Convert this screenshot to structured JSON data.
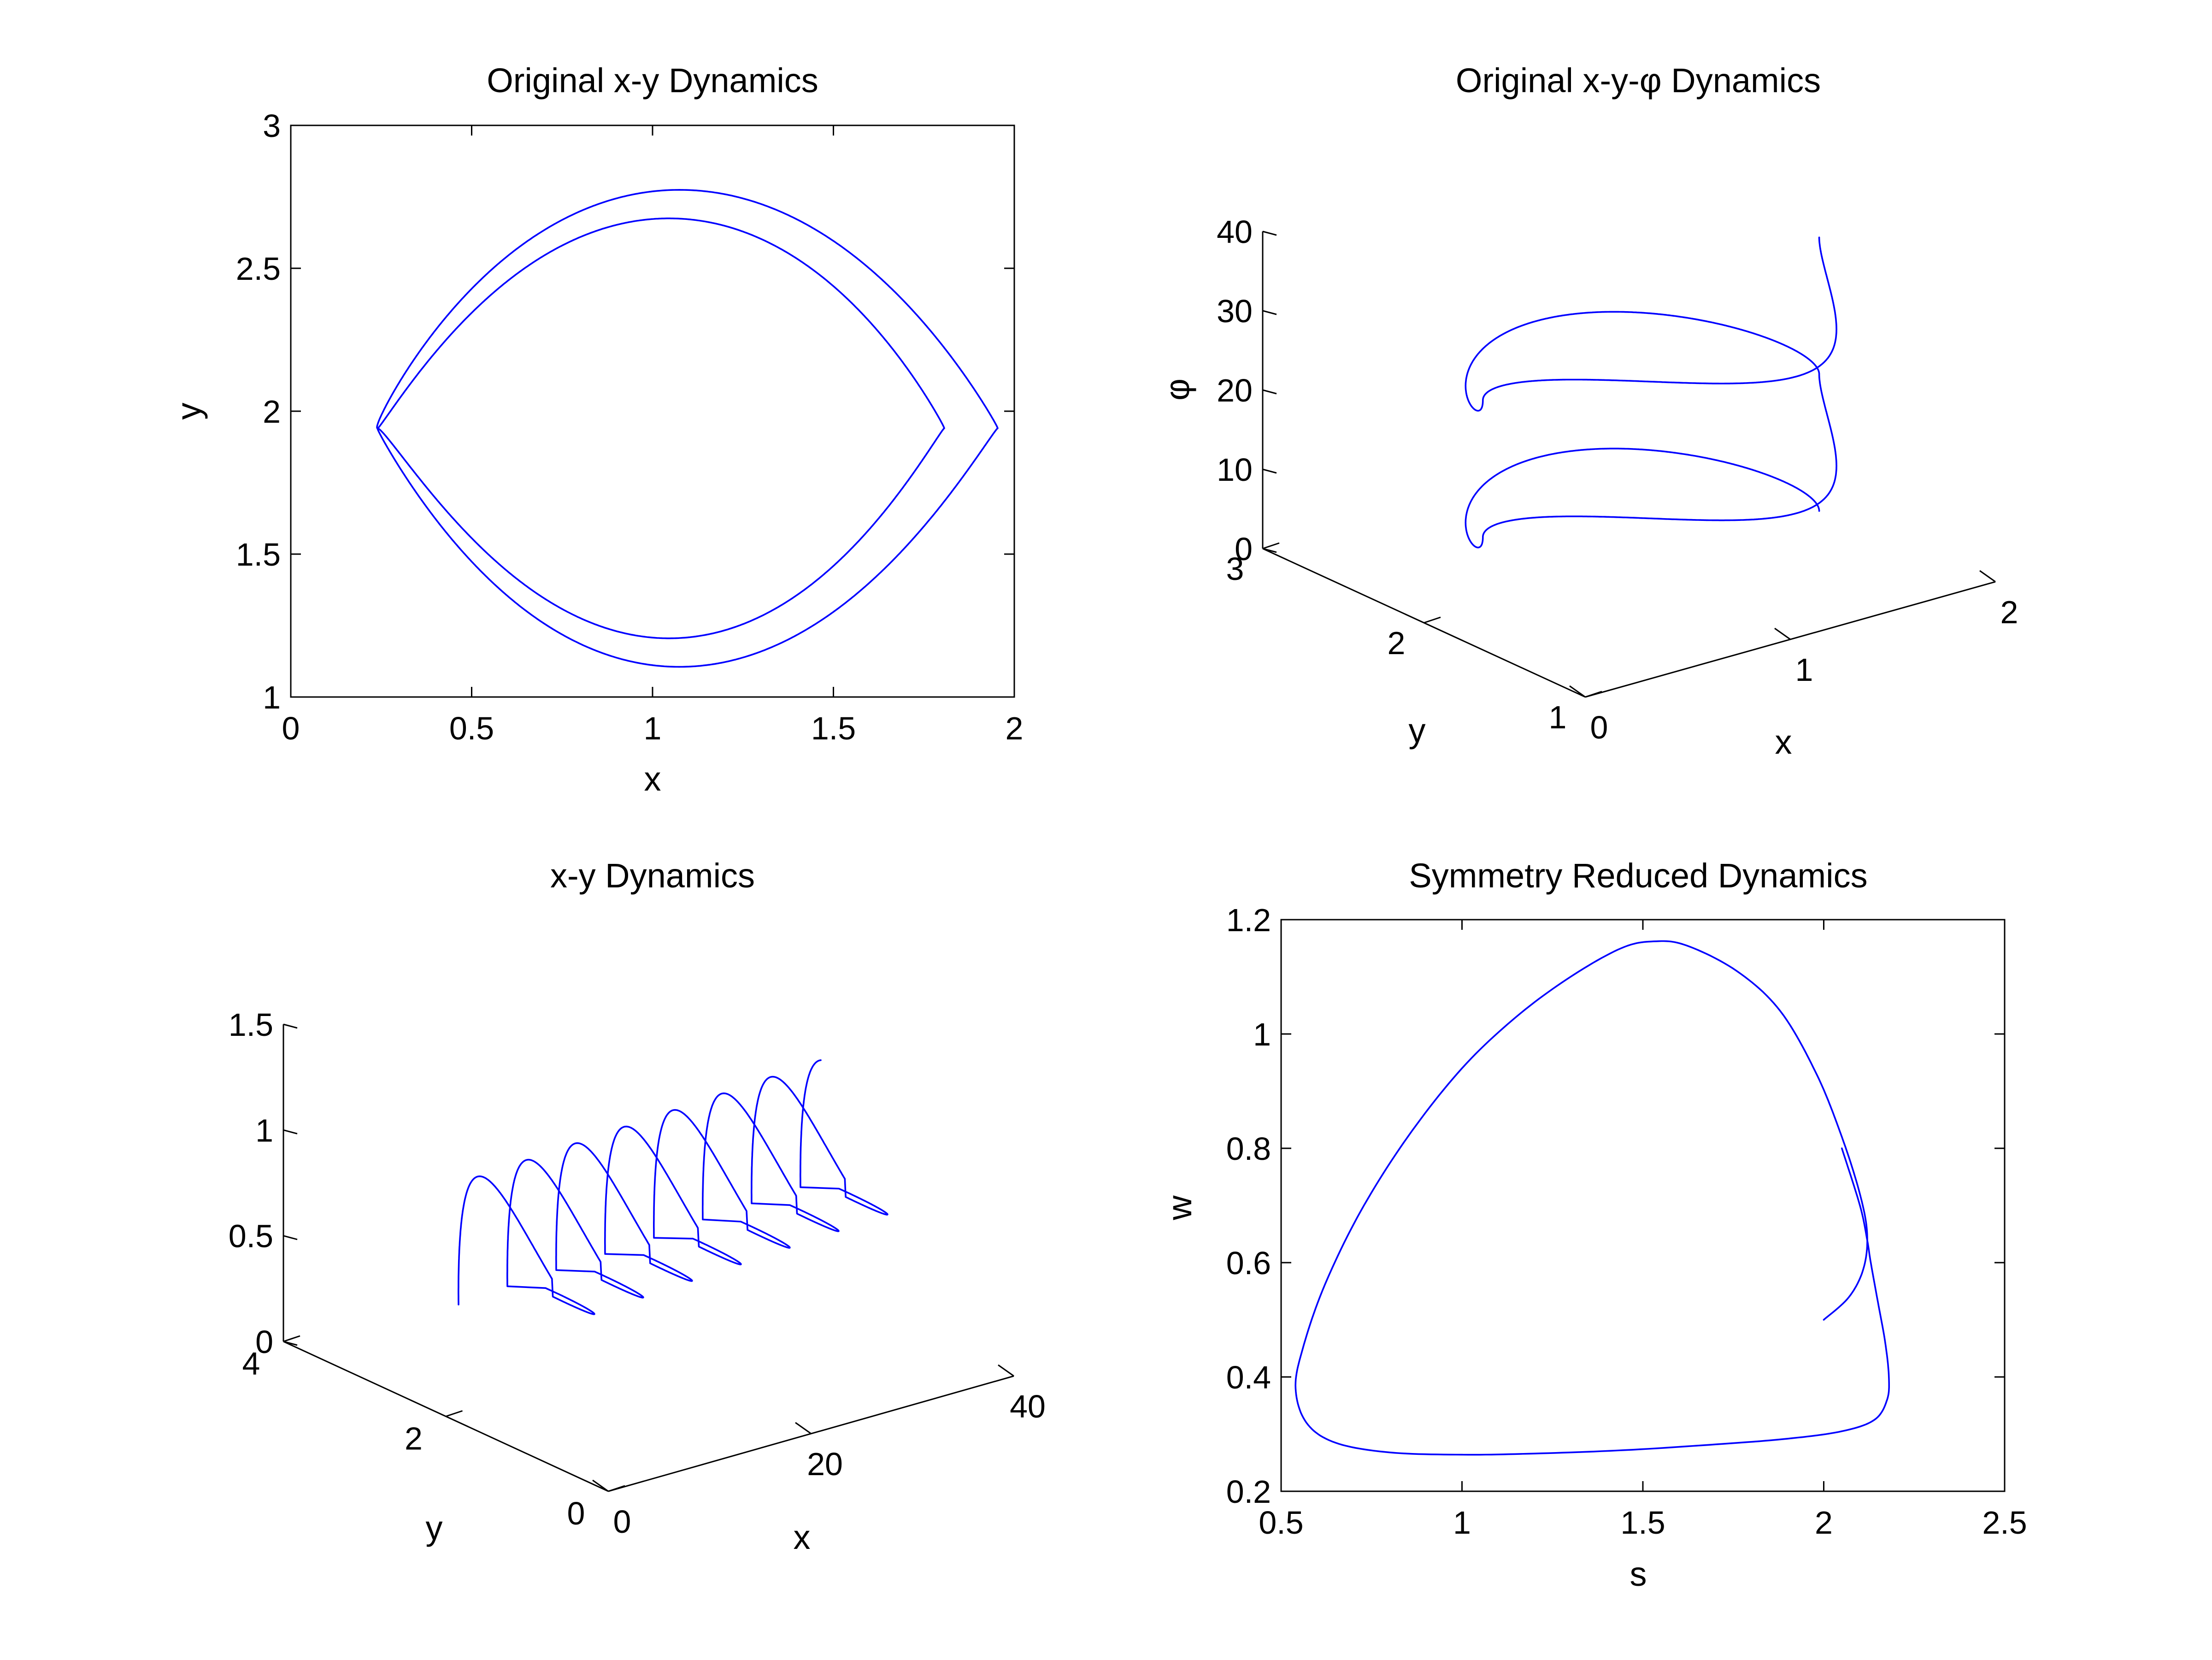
{
  "colors": {
    "line": "#0000ff",
    "axes": "#000000",
    "background": "#ffffff"
  },
  "chart_data": [
    {
      "id": "p1",
      "type": "line",
      "title": "Original x-y Dynamics",
      "xlabel": "x",
      "ylabel": "y",
      "xlim": [
        0,
        2
      ],
      "ylim": [
        1,
        3
      ],
      "xticks": [
        0,
        0.5,
        1,
        1.5,
        2
      ],
      "yticks": [
        1,
        1.5,
        2,
        2.5,
        3
      ],
      "xtick_labels": [
        "0",
        "0.5",
        "1",
        "1.5",
        "2"
      ],
      "ytick_labels": [
        "1",
        "1.5",
        "2",
        "2.5",
        "3"
      ],
      "box": true,
      "grid": false,
      "curve": {
        "kind": "four-lobe loop",
        "center": [
          1.06,
          1.94
        ],
        "lobe_x_extent": [
          0.24,
          1.94
        ],
        "lobe_y_extent": [
          1.08,
          2.82
        ],
        "loops": 2
      }
    },
    {
      "id": "p2",
      "type": "line",
      "title": "Original x-y-φ Dynamics",
      "xlabel": "x",
      "ylabel": "y",
      "zlabel": "φ",
      "xlim": [
        0,
        2
      ],
      "ylim": [
        1,
        3
      ],
      "zlim": [
        0,
        40
      ],
      "xticks": [
        0,
        1,
        2
      ],
      "yticks": [
        1,
        2,
        3
      ],
      "zticks": [
        0,
        10,
        20,
        30,
        40
      ],
      "xtick_labels": [
        "0",
        "1",
        "2"
      ],
      "ytick_labels": [
        "1",
        "2",
        "3"
      ],
      "ztick_labels": [
        "0",
        "10",
        "20",
        "30",
        "40"
      ],
      "view": "3d",
      "grid": false,
      "curve": {
        "kind": "rising lobe helix",
        "phi_range": [
          0,
          37
        ]
      }
    },
    {
      "id": "p3",
      "type": "line",
      "title": "x-y Dynamics",
      "xlabel": "x",
      "ylabel": "y",
      "zlim": [
        0,
        1.5
      ],
      "xlim": [
        0,
        40
      ],
      "ylim": [
        0,
        4
      ],
      "xticks": [
        0,
        20,
        40
      ],
      "yticks": [
        0,
        2,
        4
      ],
      "zticks": [
        0,
        0.5,
        1,
        1.5
      ],
      "xtick_labels": [
        "0",
        "20",
        "40"
      ],
      "ytick_labels": [
        "0",
        "2",
        "4"
      ],
      "ztick_labels": [
        "0",
        "0.5",
        "1",
        "1.5"
      ],
      "view": "3d",
      "grid": false,
      "curve": {
        "kind": "drifting loops",
        "loops": 7
      }
    },
    {
      "id": "p4",
      "type": "line",
      "title": "Symmetry Reduced Dynamics",
      "xlabel": "s",
      "ylabel": "w",
      "xlim": [
        0.5,
        2.5
      ],
      "ylim": [
        0.2,
        1.2
      ],
      "xticks": [
        0.5,
        1,
        1.5,
        2,
        2.5
      ],
      "yticks": [
        0.2,
        0.4,
        0.6,
        0.8,
        1,
        1.2
      ],
      "xtick_labels": [
        "0.5",
        "1",
        "1.5",
        "2",
        "2.5"
      ],
      "ytick_labels": [
        "0.2",
        "0.4",
        "0.6",
        "0.8",
        "1",
        "1.2"
      ],
      "box": true,
      "grid": false,
      "curve": {
        "kind": "limit cycle",
        "points": [
          [
            2.0,
            0.5
          ],
          [
            2.07,
            0.54
          ],
          [
            2.11,
            0.59
          ],
          [
            2.12,
            0.65
          ],
          [
            2.1,
            0.72
          ],
          [
            2.05,
            0.82
          ],
          [
            1.98,
            0.93
          ],
          [
            1.88,
            1.04
          ],
          [
            1.76,
            1.11
          ],
          [
            1.62,
            1.155
          ],
          [
            1.53,
            1.162
          ],
          [
            1.44,
            1.15
          ],
          [
            1.3,
            1.1
          ],
          [
            1.15,
            1.03
          ],
          [
            1.0,
            0.94
          ],
          [
            0.85,
            0.82
          ],
          [
            0.72,
            0.69
          ],
          [
            0.62,
            0.56
          ],
          [
            0.56,
            0.45
          ],
          [
            0.54,
            0.38
          ],
          [
            0.57,
            0.32
          ],
          [
            0.65,
            0.285
          ],
          [
            0.8,
            0.268
          ],
          [
            1.0,
            0.264
          ],
          [
            1.2,
            0.266
          ],
          [
            1.45,
            0.272
          ],
          [
            1.7,
            0.282
          ],
          [
            1.9,
            0.292
          ],
          [
            2.05,
            0.305
          ],
          [
            2.14,
            0.325
          ],
          [
            2.175,
            0.36
          ],
          [
            2.18,
            0.4
          ],
          [
            2.17,
            0.46
          ],
          [
            2.15,
            0.53
          ],
          [
            2.13,
            0.6
          ],
          [
            2.12,
            0.64
          ],
          [
            2.1,
            0.7
          ],
          [
            2.05,
            0.8
          ]
        ]
      }
    }
  ]
}
